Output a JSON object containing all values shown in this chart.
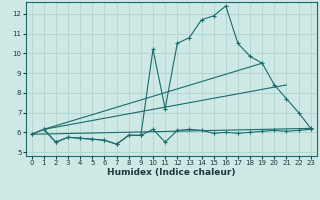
{
  "xlabel": "Humidex (Indice chaleur)",
  "ylabel": "",
  "xlim": [
    -0.5,
    23.5
  ],
  "ylim": [
    4.8,
    12.6
  ],
  "yticks": [
    5,
    6,
    7,
    8,
    9,
    10,
    11,
    12
  ],
  "xticks": [
    0,
    1,
    2,
    3,
    4,
    5,
    6,
    7,
    8,
    9,
    10,
    11,
    12,
    13,
    14,
    15,
    16,
    17,
    18,
    19,
    20,
    21,
    22,
    23
  ],
  "bg_color": "#cde8e5",
  "grid_color": "#aad0cc",
  "line_color": "#1a6b6b",
  "line1_x": [
    0,
    1,
    2,
    3,
    4,
    5,
    6,
    7,
    8,
    9,
    10,
    11,
    12,
    13,
    14,
    15,
    16,
    17,
    18,
    19,
    20,
    21,
    22,
    23
  ],
  "line1_y": [
    5.9,
    6.15,
    5.5,
    5.75,
    5.7,
    5.65,
    5.6,
    5.4,
    5.85,
    5.85,
    6.15,
    5.5,
    6.1,
    6.15,
    6.1,
    5.95,
    6.0,
    5.95,
    6.0,
    6.05,
    6.1,
    6.05,
    6.1,
    6.15
  ],
  "line2_x": [
    0,
    1,
    2,
    3,
    4,
    5,
    6,
    7,
    8,
    9,
    10,
    11,
    12,
    13,
    14,
    15,
    16,
    17,
    18,
    19,
    20,
    21,
    22,
    23
  ],
  "line2_y": [
    5.9,
    6.15,
    5.5,
    5.75,
    5.7,
    5.65,
    5.6,
    5.4,
    5.85,
    5.85,
    10.2,
    7.2,
    10.5,
    10.8,
    11.7,
    11.9,
    12.4,
    10.5,
    9.85,
    9.5,
    8.4,
    7.7,
    7.0,
    6.2
  ],
  "line3_x": [
    0,
    23
  ],
  "line3_y": [
    5.9,
    6.2
  ],
  "line4_x": [
    1,
    21
  ],
  "line4_y": [
    6.15,
    8.4
  ],
  "line5_x": [
    1,
    19
  ],
  "line5_y": [
    6.15,
    9.5
  ]
}
